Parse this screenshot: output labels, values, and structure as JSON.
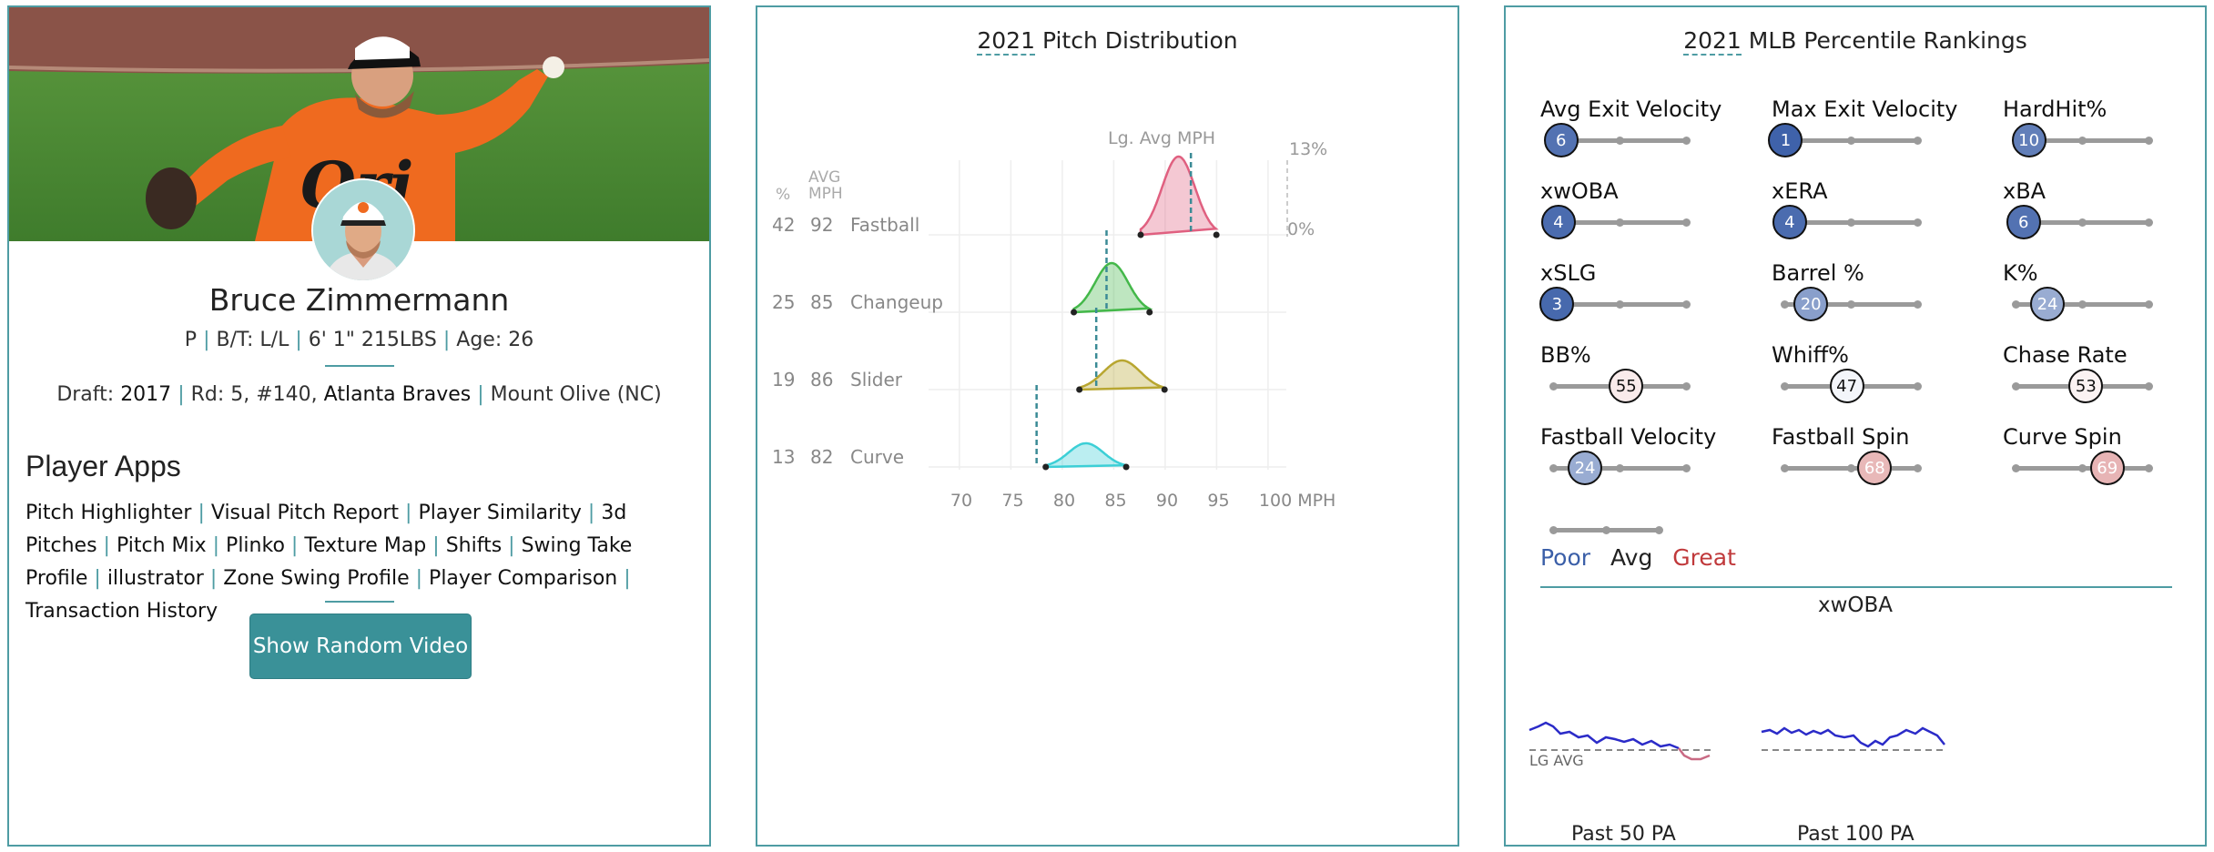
{
  "player": {
    "name": "Bruce Zimmermann",
    "position": "P",
    "bats_throws": "B/T: L/L",
    "height_weight": "6' 1\" 215LBS",
    "age": "Age: 26",
    "draft_label": "Draft:",
    "draft_year": "2017",
    "draft_round": "Rd: 5, #140,",
    "draft_team": "Atlanta Braves",
    "school": "Mount Olive (NC)"
  },
  "apps": {
    "title": "Player Apps",
    "items": [
      "Pitch Highlighter",
      "Visual Pitch Report",
      "Player Similarity",
      "3d Pitches",
      "Pitch Mix",
      "Plinko",
      "Texture Map",
      "Shifts",
      "Swing Take Profile",
      "illustrator",
      "Zone Swing Profile",
      "Player Comparison",
      "Transaction History"
    ]
  },
  "random_video_button": "Show Random Video",
  "pitch_dist": {
    "year": "2021",
    "title_rest": " Pitch Distribution",
    "lg_avg_label": "Lg. Avg MPH",
    "col_pct": "%",
    "col_avg": "AVG",
    "col_mph": "MPH",
    "scale_top": "13%",
    "scale_bottom": "0%",
    "x_ticks": [
      "70",
      "75",
      "80",
      "85",
      "90",
      "95",
      "100 MPH"
    ],
    "pitches": [
      {
        "pct": "42",
        "mph": "92",
        "name": "Fastball",
        "color": "#e06080",
        "lg_avg": 92.5,
        "center": 91.3,
        "spread": 1.6
      },
      {
        "pct": "25",
        "mph": "85",
        "name": "Changeup",
        "color": "#44b84a",
        "lg_avg": 84.3,
        "center": 84.8,
        "spread": 1.6
      },
      {
        "pct": "19",
        "mph": "86",
        "name": "Slider",
        "color": "#b8a630",
        "lg_avg": 83.3,
        "center": 85.8,
        "spread": 1.8
      },
      {
        "pct": "13",
        "mph": "82",
        "name": "Curve",
        "color": "#3ccfd6",
        "lg_avg": 77.5,
        "center": 82.3,
        "spread": 1.7
      }
    ]
  },
  "percentiles": {
    "year": "2021",
    "title_rest": " MLB Percentile Rankings",
    "items": [
      {
        "label": "Avg Exit Velocity",
        "value": "6"
      },
      {
        "label": "Max Exit Velocity",
        "value": "1"
      },
      {
        "label": "HardHit%",
        "value": "10"
      },
      {
        "label": "xwOBA",
        "value": "4"
      },
      {
        "label": "xERA",
        "value": "4"
      },
      {
        "label": "xBA",
        "value": "6"
      },
      {
        "label": "xSLG",
        "value": "3"
      },
      {
        "label": "Barrel %",
        "value": "20"
      },
      {
        "label": "K%",
        "value": "24"
      },
      {
        "label": "BB%",
        "value": "55"
      },
      {
        "label": "Whiff%",
        "value": "47"
      },
      {
        "label": "Chase Rate",
        "value": "53"
      },
      {
        "label": "Fastball Velocity",
        "value": "24"
      },
      {
        "label": "Fastball Spin",
        "value": "68"
      },
      {
        "label": "Curve Spin",
        "value": "69"
      }
    ],
    "legend": {
      "poor": "Poor",
      "avg": "Avg",
      "great": "Great",
      "poor_color": "#3b5fa8",
      "great_color": "#c0393b"
    },
    "xwoba_title": "xwOBA",
    "lg_avg_label": "LG AVG",
    "spark_labels": [
      "Past 50 PA",
      "Past 100 PA"
    ]
  }
}
